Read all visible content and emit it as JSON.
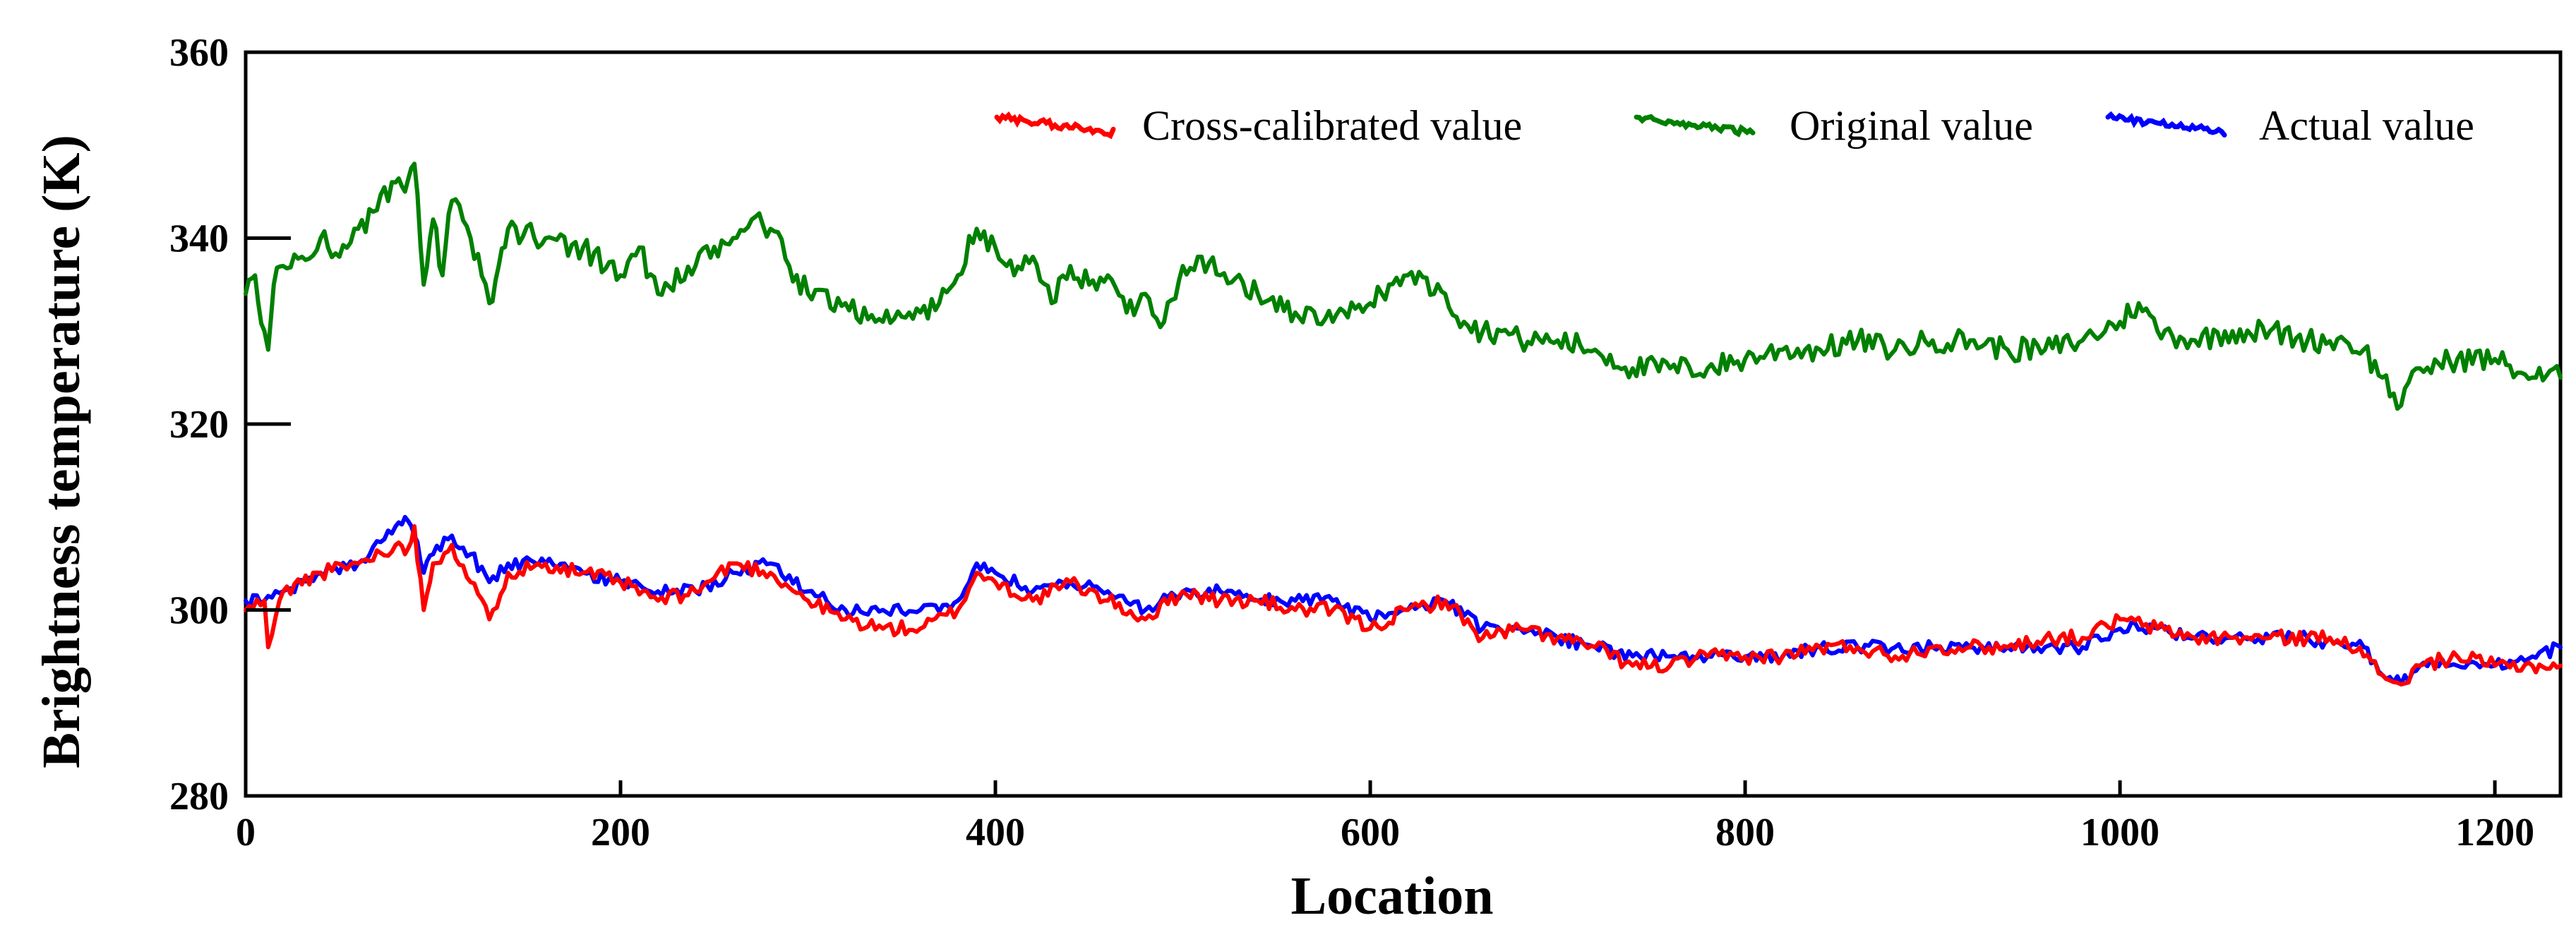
{
  "chart_data": {
    "type": "line",
    "title": "",
    "xlabel": "Location",
    "ylabel": "Brightness temperature (K)",
    "xlim": [
      0,
      1235
    ],
    "ylim": [
      280,
      360
    ],
    "xticks": [
      0,
      200,
      400,
      600,
      800,
      1000,
      1200
    ],
    "yticks": [
      280,
      300,
      320,
      340,
      360
    ],
    "grid": false,
    "legend_position": "top-right",
    "series": [
      {
        "name": "Cross-calibrated value",
        "color": "#ff0000",
        "x": [
          0,
          10,
          12,
          20,
          40,
          60,
          80,
          85,
          90,
          95,
          100,
          110,
          120,
          130,
          140,
          160,
          180,
          200,
          220,
          240,
          260,
          280,
          300,
          320,
          340,
          360,
          380,
          390,
          400,
          420,
          440,
          460,
          480,
          500,
          520,
          540,
          560,
          580,
          600,
          620,
          640,
          660,
          680,
          700,
          720,
          740,
          760,
          780,
          800,
          820,
          840,
          860,
          880,
          900,
          920,
          940,
          960,
          980,
          1000,
          1020,
          1040,
          1060,
          1080,
          1100,
          1120,
          1130,
          1140,
          1150,
          1160,
          1180,
          1200,
          1220,
          1235
        ],
        "y": [
          300,
          301,
          296,
          302,
          304,
          305,
          307,
          306,
          309,
          300,
          305,
          307,
          303,
          299,
          304,
          305,
          304,
          303,
          301,
          302,
          305,
          304,
          301,
          299,
          298,
          298,
          300,
          304,
          303,
          301,
          303,
          301,
          299,
          302,
          301,
          301,
          300,
          300,
          298,
          300,
          301,
          297,
          298,
          297,
          296,
          294,
          294,
          295,
          295,
          295,
          296,
          296,
          295,
          296,
          296,
          296,
          297,
          297,
          299,
          298,
          297,
          297,
          297,
          297,
          297,
          295,
          293,
          292,
          294,
          295,
          294,
          294,
          294
        ]
      },
      {
        "name": "Original value",
        "color": "#008000",
        "x": [
          0,
          5,
          10,
          12,
          15,
          20,
          30,
          40,
          50,
          60,
          70,
          80,
          85,
          90,
          95,
          100,
          105,
          110,
          120,
          130,
          135,
          140,
          160,
          180,
          200,
          210,
          220,
          240,
          260,
          270,
          280,
          290,
          300,
          320,
          340,
          360,
          370,
          380,
          390,
          400,
          410,
          420,
          430,
          440,
          450,
          460,
          470,
          480,
          490,
          500,
          510,
          520,
          540,
          560,
          580,
          600,
          610,
          620,
          640,
          650,
          660,
          670,
          680,
          700,
          720,
          740,
          760,
          780,
          800,
          820,
          840,
          860,
          880,
          900,
          920,
          940,
          960,
          980,
          1000,
          1010,
          1020,
          1040,
          1060,
          1080,
          1100,
          1120,
          1130,
          1140,
          1150,
          1160,
          1180,
          1200,
          1220,
          1235
        ],
        "y": [
          334,
          336,
          330,
          328,
          335,
          337,
          338,
          340,
          338,
          341,
          343,
          346,
          345,
          348,
          335,
          342,
          336,
          344,
          340,
          333,
          337,
          341,
          340,
          339,
          336,
          339,
          334,
          337,
          340,
          342,
          341,
          337,
          334,
          333,
          331,
          332,
          333,
          336,
          341,
          339,
          336,
          338,
          333,
          337,
          335,
          336,
          332,
          334,
          331,
          337,
          338,
          336,
          334,
          332,
          331,
          333,
          335,
          336,
          334,
          331,
          330,
          330,
          329,
          329,
          328,
          326,
          326,
          326,
          327,
          328,
          328,
          329,
          328,
          329,
          329,
          328,
          328,
          329,
          331,
          333,
          330,
          329,
          330,
          330,
          329,
          329,
          328,
          325,
          322,
          326,
          327,
          327,
          325,
          325
        ]
      },
      {
        "name": "Actual value",
        "color": "#0000ff",
        "x": [
          0,
          10,
          20,
          40,
          60,
          80,
          85,
          90,
          95,
          100,
          110,
          120,
          130,
          140,
          160,
          180,
          200,
          220,
          240,
          260,
          280,
          300,
          320,
          340,
          360,
          380,
          390,
          400,
          420,
          440,
          460,
          480,
          500,
          520,
          540,
          560,
          580,
          600,
          620,
          640,
          660,
          680,
          700,
          720,
          740,
          760,
          780,
          800,
          820,
          840,
          860,
          880,
          900,
          920,
          940,
          960,
          980,
          1000,
          1020,
          1040,
          1060,
          1080,
          1100,
          1120,
          1130,
          1140,
          1150,
          1160,
          1180,
          1200,
          1220,
          1235
        ],
        "y": [
          301,
          301,
          302,
          304,
          305,
          309,
          310,
          308,
          304,
          306,
          308,
          306,
          303,
          305,
          305,
          304,
          303,
          302,
          302,
          304,
          305,
          302,
          300,
          300,
          300,
          301,
          305,
          304,
          302,
          303,
          302,
          300,
          302,
          302,
          301,
          301,
          301,
          299,
          300,
          301,
          298,
          298,
          297,
          296,
          295,
          295,
          295,
          295,
          295,
          296,
          296,
          296,
          296,
          296,
          296,
          296,
          296,
          298,
          298,
          297,
          297,
          297,
          297,
          296,
          296,
          293,
          292,
          294,
          294,
          294,
          295,
          296
        ]
      }
    ]
  }
}
